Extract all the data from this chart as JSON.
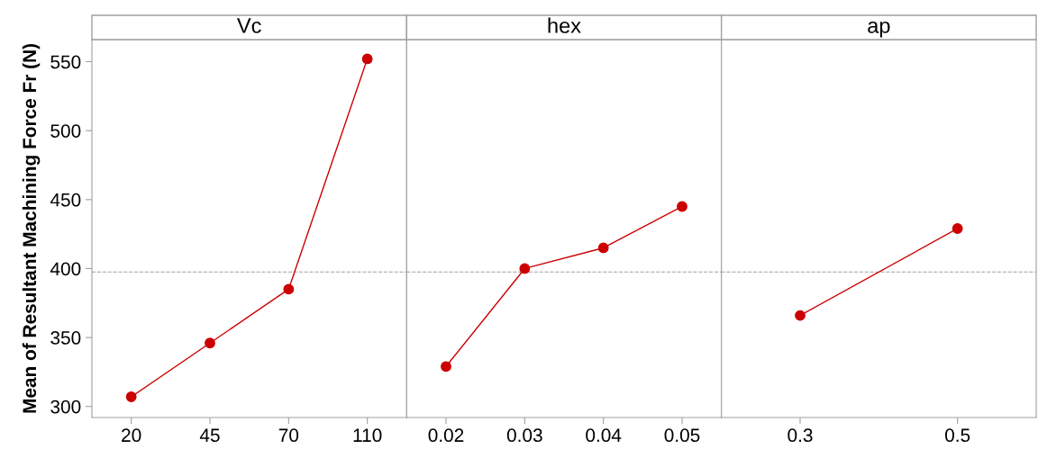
{
  "chart_data": [
    {
      "type": "line",
      "title": "Vc",
      "ylabel": "Mean of Resultant Machining Force Fr (N)",
      "categories": [
        "20",
        "45",
        "70",
        "110"
      ],
      "series": [
        {
          "color": "#cc0000",
          "values": [
            307,
            346,
            385,
            552
          ]
        }
      ],
      "marker": "circle",
      "ylim": [
        292,
        566
      ],
      "yticks": [
        300,
        350,
        400,
        450,
        500,
        550
      ],
      "ref_lines": [
        {
          "axis": "y",
          "value": 397.5,
          "color": "#a0a0a0",
          "line_style": "dashed"
        }
      ],
      "grid": false,
      "legend": false
    },
    {
      "type": "line",
      "title": "hex",
      "categories": [
        "0.02",
        "0.03",
        "0.04",
        "0.05"
      ],
      "series": [
        {
          "color": "#cc0000",
          "values": [
            329,
            400,
            415,
            445
          ]
        }
      ],
      "marker": "circle",
      "ylim": [
        292,
        566
      ],
      "yticks": [
        300,
        350,
        400,
        450,
        500,
        550
      ],
      "tick_labels": "x",
      "ref_lines": [
        {
          "axis": "y",
          "value": 397.5,
          "color": "#a0a0a0",
          "line_style": "dashed"
        }
      ],
      "grid": false,
      "legend": false
    },
    {
      "type": "line",
      "title": "ap",
      "categories": [
        "0.3",
        "0.5"
      ],
      "series": [
        {
          "color": "#cc0000",
          "values": [
            366,
            429
          ]
        }
      ],
      "marker": "circle",
      "ylim": [
        292,
        566
      ],
      "yticks": [
        300,
        350,
        400,
        450,
        500,
        550
      ],
      "tick_labels": "x",
      "ref_lines": [
        {
          "axis": "y",
          "value": 397.5,
          "color": "#a0a0a0",
          "line_style": "dashed"
        }
      ],
      "grid": false,
      "legend": false
    }
  ]
}
